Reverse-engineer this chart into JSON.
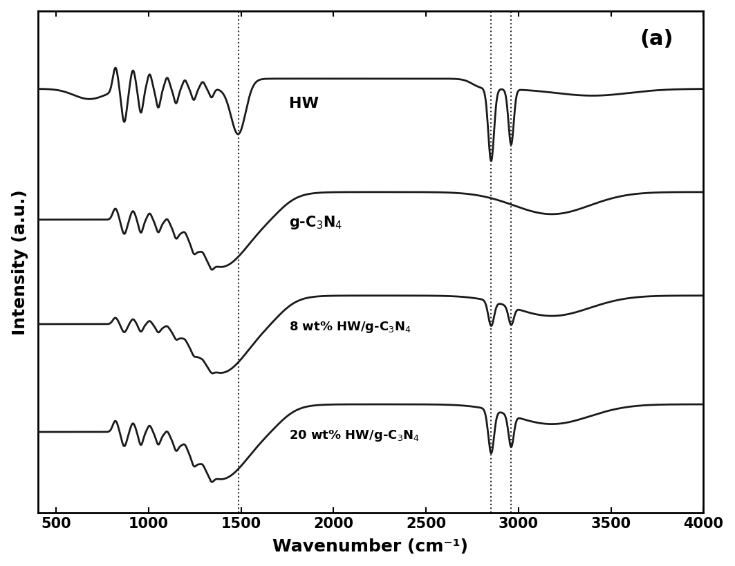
{
  "title": "(a)",
  "xlabel": "Wavenumber (cm⁻¹)",
  "ylabel": "Intensity (a.u.)",
  "xlim": [
    400,
    4000
  ],
  "xticks": [
    500,
    1000,
    1500,
    2000,
    2500,
    3000,
    3500,
    4000
  ],
  "vlines": [
    1485,
    2850,
    2960
  ],
  "offsets": [
    3.1,
    2.05,
    1.05,
    0.0
  ],
  "background_color": "#ffffff",
  "line_color": "#1a1a1a"
}
